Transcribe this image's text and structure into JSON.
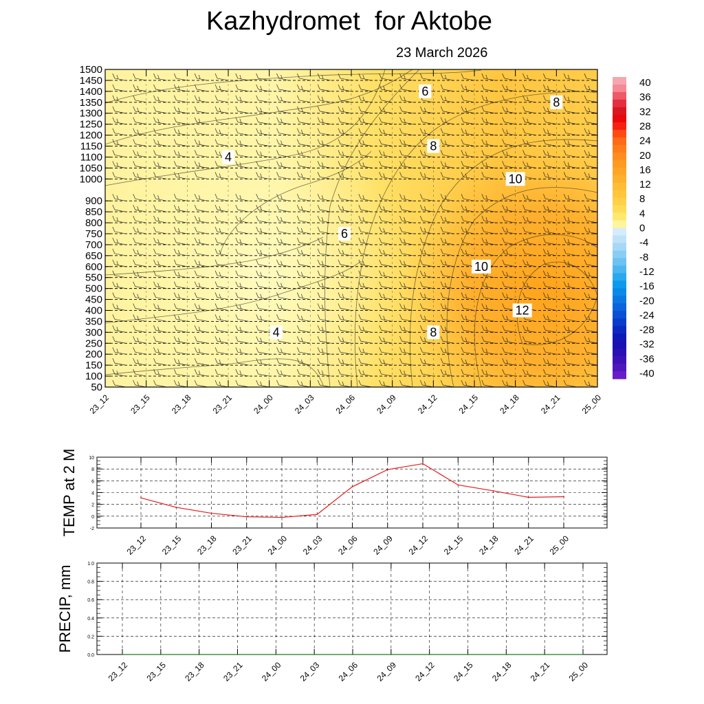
{
  "title": "Kazhydromet  for Aktobe",
  "subtitle": "23 March 2026",
  "time_labels": [
    "23_12",
    "23_15",
    "23_18",
    "23_21",
    "24_00",
    "24_03",
    "24_06",
    "24_09",
    "24_12",
    "24_15",
    "24_18",
    "24_21",
    "25_00"
  ],
  "colors": {
    "line": "#e31a1c",
    "precip_line": "#1a7a1a",
    "warm_field": [
      "#fffdb0",
      "#fff08a",
      "#ffe366",
      "#ffd44d",
      "#ffc23a",
      "#ffb02e",
      "#ffa020"
    ]
  },
  "chart_data": [
    {
      "type": "heatmap",
      "x": [
        "23_12",
        "23_15",
        "23_18",
        "23_21",
        "24_00",
        "24_03",
        "24_06",
        "24_09",
        "24_12",
        "24_15",
        "24_18",
        "24_21",
        "25_00"
      ],
      "y_levels": [
        50,
        100,
        150,
        200,
        250,
        300,
        350,
        400,
        450,
        500,
        550,
        600,
        650,
        700,
        750,
        800,
        850,
        900,
        1000,
        1050,
        1100,
        1150,
        1200,
        1250,
        1300,
        1350,
        1400,
        1450,
        1500
      ],
      "contour_labels": [
        {
          "value": "4",
          "x": "23_21",
          "y": 1100
        },
        {
          "value": "4",
          "x": "24_00",
          "y": 300
        },
        {
          "value": "6",
          "x": "24_06",
          "y": 750
        },
        {
          "value": "6",
          "x": "24_12",
          "y": 1400
        },
        {
          "value": "8",
          "x": "24_12",
          "y": 1150
        },
        {
          "value": "8",
          "x": "24_21",
          "y": 1350
        },
        {
          "value": "8",
          "x": "24_12",
          "y": 300
        },
        {
          "value": "10",
          "x": "24_15",
          "y": 600
        },
        {
          "value": "10",
          "x": "24_18",
          "y": 1000
        },
        {
          "value": "12",
          "x": "24_18",
          "y": 400
        }
      ],
      "colorbar_ticks": [
        "40",
        "36",
        "32",
        "28",
        "24",
        "20",
        "16",
        "12",
        "8",
        "4",
        "0",
        "-4",
        "-8",
        "-12",
        "-16",
        "-20",
        "-24",
        "-28",
        "-32",
        "-36",
        "-40"
      ]
    },
    {
      "type": "line",
      "ylabel": "TEMP at 2 M",
      "x": [
        "23_12",
        "23_15",
        "23_18",
        "23_21",
        "24_00",
        "24_03",
        "24_06",
        "24_09",
        "24_12",
        "24_15",
        "24_18",
        "24_21",
        "25_00"
      ],
      "values": [
        3.1,
        1.5,
        0.5,
        -0.1,
        -0.2,
        0.3,
        5.0,
        7.9,
        8.9,
        5.3,
        4.3,
        3.2,
        3.3
      ],
      "ylim": [
        -2,
        10
      ],
      "yticks": [
        "10",
        "8",
        "6",
        "4",
        "2",
        "0",
        "-2"
      ]
    },
    {
      "type": "line",
      "ylabel": "PRECIP, mm",
      "x": [
        "23_12",
        "23_15",
        "23_18",
        "23_21",
        "24_00",
        "24_03",
        "24_06",
        "24_09",
        "24_12",
        "24_15",
        "24_18",
        "24_21",
        "25_00"
      ],
      "values": [
        0,
        0,
        0,
        0,
        0,
        0,
        0,
        0,
        0,
        0,
        0,
        0,
        0
      ],
      "ylim": [
        0,
        1
      ],
      "yticks": [
        "1.0",
        "0.8",
        "0.6",
        "0.4",
        "0.2",
        "0.0"
      ]
    }
  ]
}
